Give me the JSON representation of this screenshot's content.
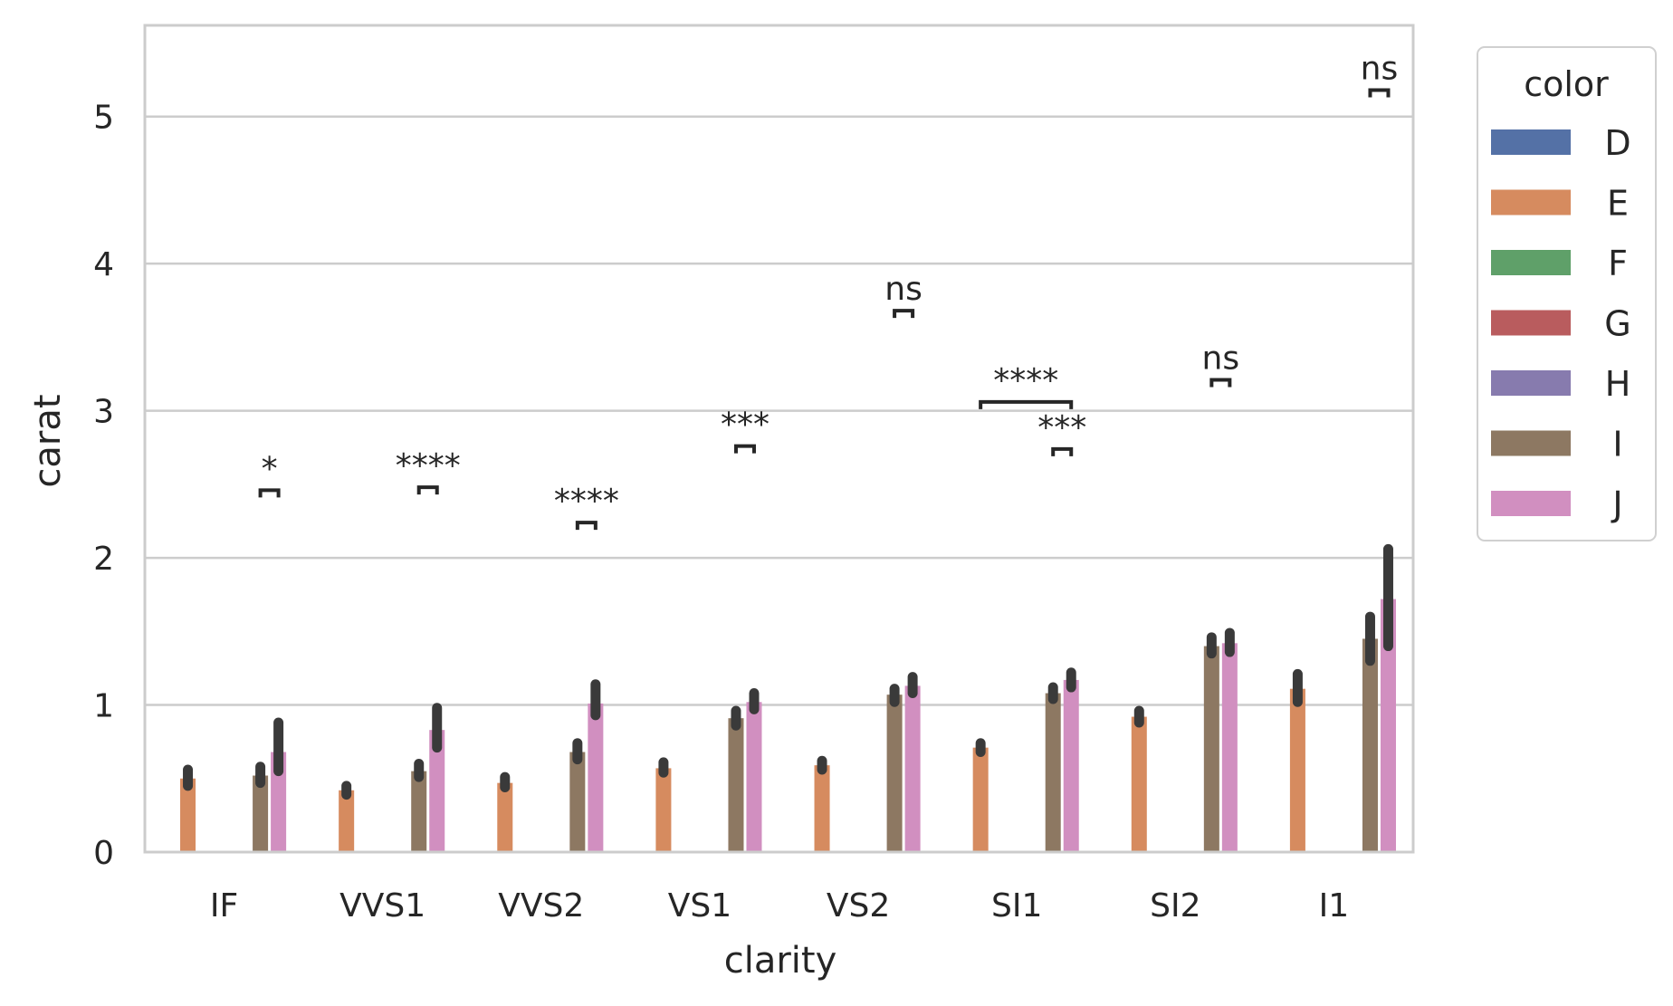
{
  "chart_data": {
    "type": "bar",
    "title": "",
    "xlabel": "clarity",
    "ylabel": "carat",
    "ylim": [
      0,
      5.62
    ],
    "yticks": [
      0,
      1,
      2,
      3,
      4,
      5
    ],
    "grid": true,
    "legend_placement": "outside-right",
    "categories": [
      "IF",
      "VVS1",
      "VVS2",
      "VS1",
      "VS2",
      "SI1",
      "SI2",
      "I1"
    ],
    "legend": {
      "title": "color",
      "entries": [
        {
          "name": "D",
          "color": "#5471a6"
        },
        {
          "name": "E",
          "color": "#d68b5f"
        },
        {
          "name": "F",
          "color": "#5fa069"
        },
        {
          "name": "G",
          "color": "#b95c5e"
        },
        {
          "name": "H",
          "color": "#877bae"
        },
        {
          "name": "I",
          "color": "#8d7862"
        },
        {
          "name": "J",
          "color": "#d18fc0"
        }
      ]
    },
    "series": [
      {
        "name": "D",
        "color": "#5471a6",
        "values": [
          null,
          null,
          null,
          null,
          null,
          null,
          null,
          null
        ],
        "ci": [
          null,
          null,
          null,
          null,
          null,
          null,
          null,
          null
        ]
      },
      {
        "name": "E",
        "color": "#d68b5f",
        "values": [
          0.5,
          0.42,
          0.47,
          0.57,
          0.59,
          0.71,
          0.92,
          1.11
        ],
        "ci": [
          [
            0.45,
            0.56
          ],
          [
            0.39,
            0.45
          ],
          [
            0.44,
            0.51
          ],
          [
            0.54,
            0.61
          ],
          [
            0.56,
            0.62
          ],
          [
            0.68,
            0.74
          ],
          [
            0.88,
            0.96
          ],
          [
            1.02,
            1.21
          ]
        ]
      },
      {
        "name": "F",
        "color": "#5fa069",
        "values": [
          null,
          null,
          null,
          null,
          null,
          null,
          null,
          null
        ],
        "ci": [
          null,
          null,
          null,
          null,
          null,
          null,
          null,
          null
        ]
      },
      {
        "name": "G",
        "color": "#b95c5e",
        "values": [
          null,
          null,
          null,
          null,
          null,
          null,
          null,
          null
        ],
        "ci": [
          null,
          null,
          null,
          null,
          null,
          null,
          null,
          null
        ]
      },
      {
        "name": "H",
        "color": "#877bae",
        "values": [
          null,
          null,
          null,
          null,
          null,
          null,
          null,
          null
        ],
        "ci": [
          null,
          null,
          null,
          null,
          null,
          null,
          null,
          null
        ]
      },
      {
        "name": "I",
        "color": "#8d7862",
        "values": [
          0.52,
          0.55,
          0.68,
          0.91,
          1.07,
          1.08,
          1.4,
          1.45
        ],
        "ci": [
          [
            0.47,
            0.58
          ],
          [
            0.51,
            0.6
          ],
          [
            0.63,
            0.74
          ],
          [
            0.86,
            0.96
          ],
          [
            1.02,
            1.11
          ],
          [
            1.04,
            1.12
          ],
          [
            1.35,
            1.46
          ],
          [
            1.3,
            1.6
          ]
        ]
      },
      {
        "name": "J",
        "color": "#d18fc0",
        "values": [
          0.68,
          0.83,
          1.01,
          1.02,
          1.13,
          1.17,
          1.42,
          1.72
        ],
        "ci": [
          [
            0.55,
            0.88
          ],
          [
            0.71,
            0.98
          ],
          [
            0.93,
            1.14
          ],
          [
            0.97,
            1.08
          ],
          [
            1.08,
            1.19
          ],
          [
            1.12,
            1.22
          ],
          [
            1.36,
            1.49
          ],
          [
            1.4,
            2.06
          ]
        ]
      }
    ],
    "annotations": [
      {
        "text": "*",
        "category": "IF",
        "from": "I",
        "to": "J",
        "y": 2.46
      },
      {
        "text": "****",
        "category": "VVS1",
        "from": "I",
        "to": "J",
        "y": 2.48
      },
      {
        "text": "****",
        "category": "VVS2",
        "from": "I",
        "to": "J",
        "y": 2.24
      },
      {
        "text": "***",
        "category": "VS1",
        "from": "I",
        "to": "J",
        "y": 2.76
      },
      {
        "text": "ns",
        "category": "VS2",
        "from": "I",
        "to": "J",
        "y": 3.68
      },
      {
        "text": "***",
        "category": "SI1",
        "from": "I",
        "to": "J",
        "y": 2.74
      },
      {
        "text": "****",
        "category": "SI1",
        "from": "E",
        "to": "J",
        "y": 3.06
      },
      {
        "text": "ns",
        "category": "SI2",
        "from": "I",
        "to": "J",
        "y": 3.21
      },
      {
        "text": "ns",
        "category": "I1",
        "from": "I",
        "to": "J",
        "y": 5.18
      }
    ]
  }
}
